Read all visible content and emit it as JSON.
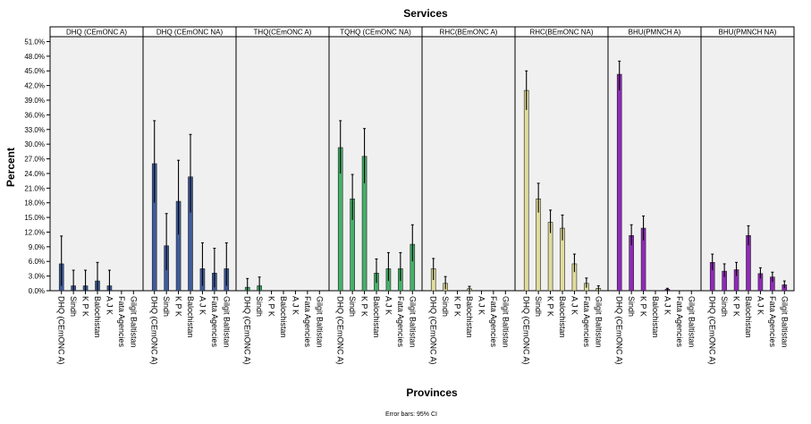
{
  "chart_data": {
    "type": "bar",
    "title": "Services",
    "xlabel": "Provinces",
    "ylabel": "Percent",
    "footnote": "Error bars: 95% CI",
    "ylim": [
      0,
      52
    ],
    "yticks": [
      0,
      3,
      6,
      9,
      12,
      15,
      18,
      21,
      24,
      27,
      30,
      33,
      36,
      39,
      42,
      45,
      48,
      51
    ],
    "ytick_labels": [
      "0.0%",
      "3.0%",
      "6.0%",
      "9.0%",
      "12.0%",
      "15.0%",
      "18.0%",
      "21.0%",
      "24.0%",
      "27.0%",
      "30.0%",
      "33.0%",
      "36.0%",
      "39.0%",
      "42.0%",
      "45.0%",
      "48.0%",
      "51.0%"
    ],
    "categories": [
      "DHQ (CEmONC A)",
      "Sindh",
      "K P K",
      "Balochistan",
      "A J K",
      "Fata Agencies",
      "Gilgit Baltistan"
    ],
    "panels": [
      {
        "name": "DHQ (CEmONC A)",
        "color": "#3f5b9a",
        "values": [
          5.5,
          1.0,
          1.0,
          2.0,
          1.0,
          0,
          0
        ],
        "ci_low": [
          1.0,
          0,
          0,
          0,
          0,
          0,
          0
        ],
        "ci_high": [
          11.2,
          4.2,
          4.2,
          5.8,
          4.2,
          0,
          0
        ]
      },
      {
        "name": "DHQ (CEmONC NA)",
        "color": "#3f5b9a",
        "values": [
          26.0,
          9.2,
          18.3,
          23.3,
          4.5,
          3.6,
          4.5
        ],
        "ci_low": [
          18.0,
          4.2,
          11.5,
          16.0,
          1.0,
          0.7,
          1.0
        ],
        "ci_high": [
          34.8,
          15.8,
          26.7,
          32.0,
          9.8,
          8.7,
          9.8
        ]
      },
      {
        "name": "THQ(CEmONC A)",
        "color": "#45b06a",
        "values": [
          0.7,
          1.0,
          0,
          0,
          0,
          0,
          0
        ],
        "ci_low": [
          0,
          0,
          0,
          0,
          0,
          0,
          0
        ],
        "ci_high": [
          2.5,
          2.8,
          0,
          0,
          0,
          0,
          0
        ]
      },
      {
        "name": "TQHQ (CEmONC NA)",
        "color": "#45b06a",
        "values": [
          29.3,
          18.8,
          27.5,
          3.6,
          4.5,
          4.5,
          9.5
        ],
        "ci_low": [
          24.0,
          14.5,
          22.0,
          1.6,
          2.0,
          2.0,
          6.0
        ],
        "ci_high": [
          34.8,
          23.8,
          33.2,
          6.5,
          7.8,
          7.8,
          13.5
        ]
      },
      {
        "name": "RHC(BEmONC A)",
        "color": "#e0dc9c",
        "values": [
          4.5,
          1.5,
          0,
          0.4,
          0,
          0,
          0
        ],
        "ci_low": [
          2.2,
          0.3,
          0,
          0,
          0,
          0,
          0
        ],
        "ci_high": [
          6.6,
          2.9,
          0,
          0.9,
          0,
          0,
          0
        ]
      },
      {
        "name": "RHC(BEmONC NA)",
        "color": "#e0dc9c",
        "values": [
          41.0,
          18.8,
          14.0,
          12.8,
          5.5,
          1.5,
          0.5
        ],
        "ci_low": [
          37.0,
          16.0,
          11.8,
          10.3,
          3.8,
          0.6,
          0
        ],
        "ci_high": [
          45.0,
          22.0,
          16.5,
          15.5,
          7.5,
          2.6,
          1.0
        ]
      },
      {
        "name": "BHU(PMNCH A)",
        "color": "#8f2ab8",
        "values": [
          44.3,
          11.3,
          12.8,
          0,
          0.3,
          0,
          0
        ],
        "ci_low": [
          41.0,
          9.3,
          10.3,
          0,
          0,
          0,
          0
        ],
        "ci_high": [
          47.0,
          13.5,
          15.3,
          0,
          0.5,
          0,
          0
        ]
      },
      {
        "name": "BHU(PMNCH NA)",
        "color": "#8f2ab8",
        "values": [
          5.8,
          4.0,
          4.3,
          11.3,
          3.5,
          2.8,
          1.2
        ],
        "ci_low": [
          4.2,
          2.8,
          3.0,
          9.3,
          2.5,
          1.8,
          0.5
        ],
        "ci_high": [
          7.5,
          5.5,
          5.8,
          13.3,
          4.7,
          3.8,
          2.0
        ]
      }
    ],
    "legend": "none",
    "grid": false,
    "error_bars": "95% CI"
  }
}
